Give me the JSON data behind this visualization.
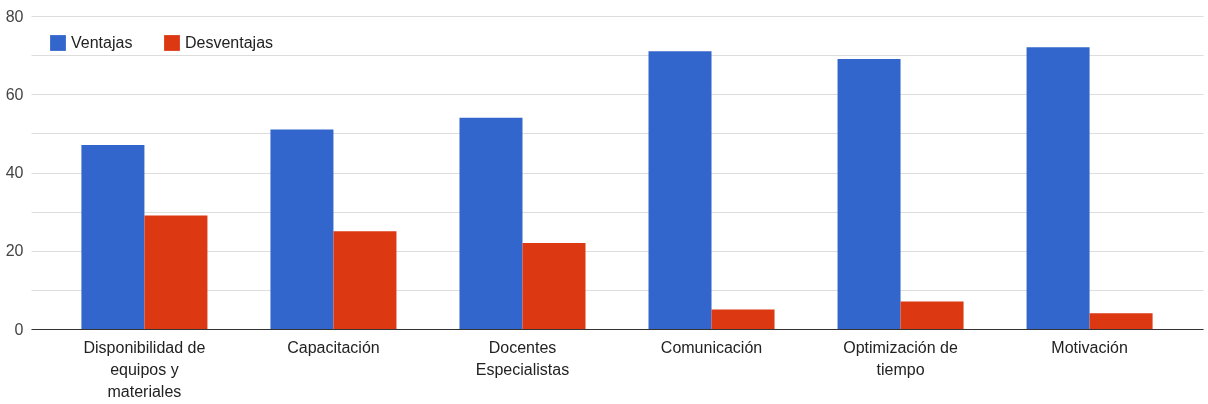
{
  "chart_data": {
    "type": "bar",
    "categories": [
      "Disponibilidad de equipos y materiales",
      "Capacitación",
      "Docentes Especialistas",
      "Comunicación",
      "Optimización de tiempo",
      "Motivación"
    ],
    "series": [
      {
        "name": "Ventajas",
        "color": "#3366cc",
        "values": [
          47,
          51,
          54,
          71,
          69,
          72
        ]
      },
      {
        "name": "Desventajas",
        "color": "#dc3912",
        "values": [
          29,
          25,
          22,
          5,
          7,
          4
        ]
      }
    ],
    "ylim": [
      0,
      80
    ],
    "yticks": [
      0,
      {
        "value": 10,
        "label": null
      },
      20,
      {
        "value": 30,
        "label": null
      },
      40,
      {
        "value": 50,
        "label": null
      },
      60,
      {
        "value": 70,
        "label": null
      },
      80
    ],
    "grid": true,
    "legend": "top left"
  }
}
